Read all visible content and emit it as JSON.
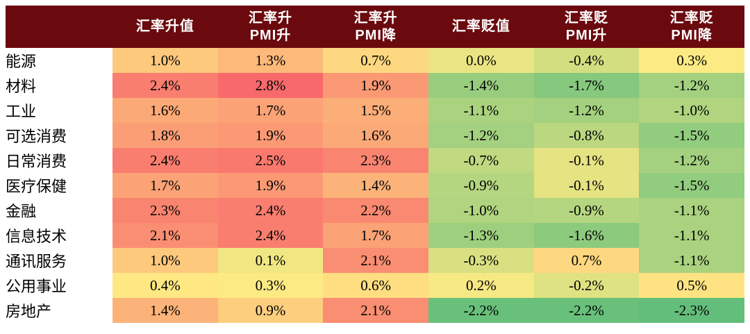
{
  "chart_data": {
    "type": "heatmap",
    "columns": [
      {
        "line1": "汇率升值",
        "line2": ""
      },
      {
        "line1": "汇率升",
        "line2": "PMI升"
      },
      {
        "line1": "汇率升",
        "line2": "PMI降"
      },
      {
        "line1": "汇率贬值",
        "line2": ""
      },
      {
        "line1": "汇率贬",
        "line2": "PMI升"
      },
      {
        "line1": "汇率贬",
        "line2": "PMI降"
      }
    ],
    "rows": [
      {
        "label": "能源",
        "values": [
          1.0,
          1.3,
          0.7,
          0.0,
          -0.4,
          0.3
        ]
      },
      {
        "label": "材料",
        "values": [
          2.4,
          2.8,
          1.9,
          -1.4,
          -1.7,
          -1.2
        ]
      },
      {
        "label": "工业",
        "values": [
          1.6,
          1.7,
          1.5,
          -1.1,
          -1.2,
          -1.0
        ]
      },
      {
        "label": "可选消费",
        "values": [
          1.8,
          1.9,
          1.6,
          -1.2,
          -0.8,
          -1.5
        ]
      },
      {
        "label": "日常消费",
        "values": [
          2.4,
          2.5,
          2.3,
          -0.7,
          -0.1,
          -1.2
        ]
      },
      {
        "label": "医疗保健",
        "values": [
          1.7,
          1.9,
          1.4,
          -0.9,
          -0.1,
          -1.5
        ]
      },
      {
        "label": "金融",
        "values": [
          2.3,
          2.4,
          2.2,
          -1.0,
          -0.9,
          -1.1
        ]
      },
      {
        "label": "信息技术",
        "values": [
          2.1,
          2.4,
          1.7,
          -1.3,
          -1.6,
          -1.1
        ]
      },
      {
        "label": "通讯服务",
        "values": [
          1.0,
          0.1,
          2.1,
          -0.3,
          0.7,
          -1.1
        ]
      },
      {
        "label": "公用事业",
        "values": [
          0.4,
          0.3,
          0.6,
          0.2,
          -0.2,
          0.5
        ]
      },
      {
        "label": "房地产",
        "values": [
          1.4,
          0.9,
          2.1,
          -2.2,
          -2.2,
          -2.3
        ]
      }
    ],
    "value_suffix": "%",
    "value_decimals": 1,
    "color_scale": {
      "min_value": -2.3,
      "mid_value": 0.35,
      "max_value": 2.8,
      "min_color": "#63BE7B",
      "mid_color": "#FFEB84",
      "max_color": "#F8696B"
    },
    "header_bg": "#6B0A0E",
    "header_text_color": "#FFFFFF",
    "cell_text_color": "#000000"
  }
}
